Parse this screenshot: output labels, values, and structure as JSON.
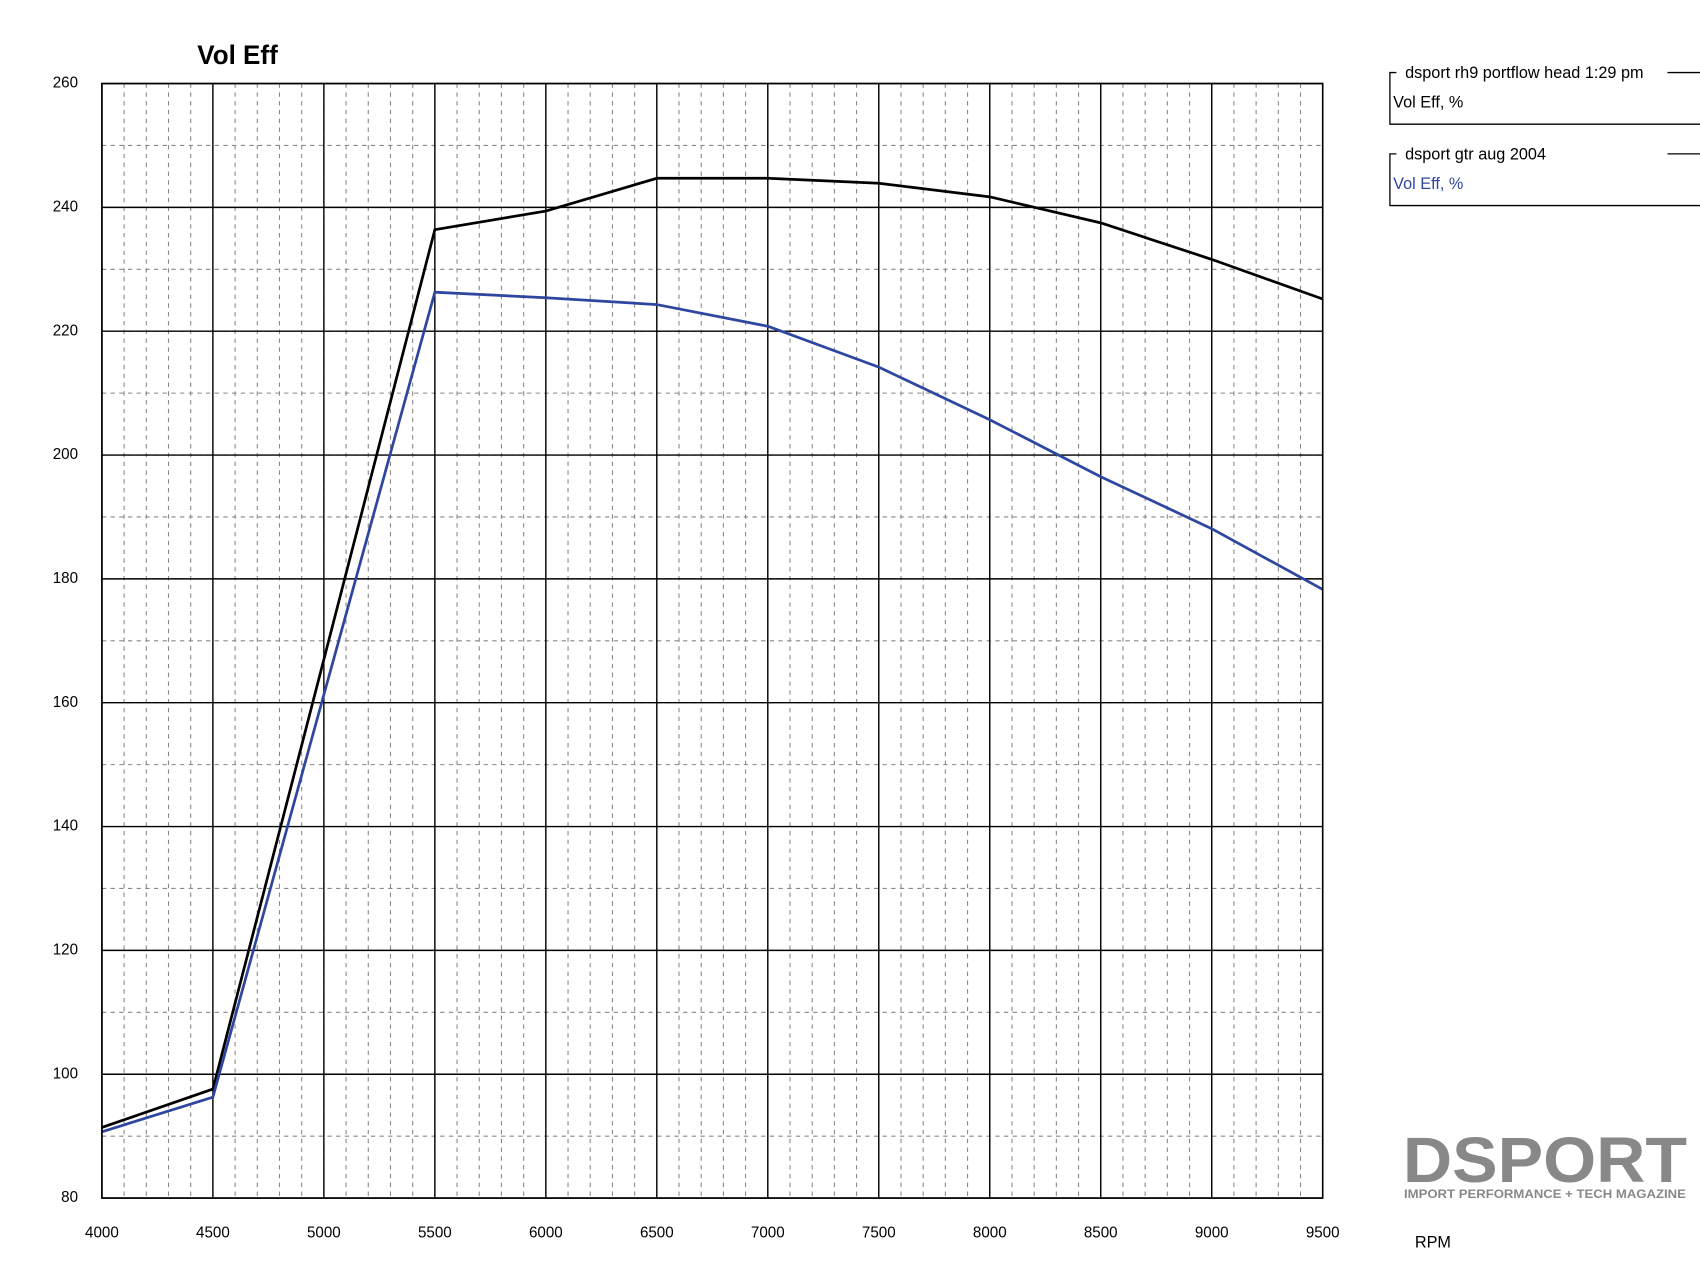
{
  "chart_data": {
    "type": "line",
    "title": "Vol Eff",
    "x_label": "RPM",
    "x": [
      4000,
      4500,
      5500,
      6000,
      6500,
      7000,
      7500,
      8000,
      8500,
      9000,
      9500
    ],
    "series": [
      {
        "name": "dsport rh9 portflow head 1:29 pm",
        "unit_label": "Vol Eff, %",
        "color": "#000000",
        "values": [
          91.4,
          97.6,
          236.4,
          239.4,
          244.7,
          244.7,
          243.9,
          241.7,
          237.5,
          231.6,
          225.2
        ]
      },
      {
        "name": "dsport gtr aug 2004",
        "unit_label": "Vol Eff, %",
        "color": "#2f46a0",
        "values": [
          90.7,
          96.3,
          226.3,
          225.4,
          224.3,
          220.8,
          214.2,
          205.7,
          196.5,
          188.1,
          178.3
        ]
      }
    ],
    "xlim": [
      4000,
      9500
    ],
    "xticks": [
      4000,
      4500,
      5000,
      5500,
      6000,
      6500,
      7000,
      7500,
      8000,
      8500,
      9000,
      9500
    ],
    "ylim": [
      80,
      260
    ],
    "yticks": [
      80,
      100,
      120,
      140,
      160,
      180,
      200,
      220,
      240,
      260
    ],
    "x_minor_step": 100,
    "y_minor_step": 10,
    "grid": true,
    "logo": {
      "name": "DSPORT",
      "tagline": "IMPORT PERFORMANCE + TECH MAGAZINE"
    }
  }
}
